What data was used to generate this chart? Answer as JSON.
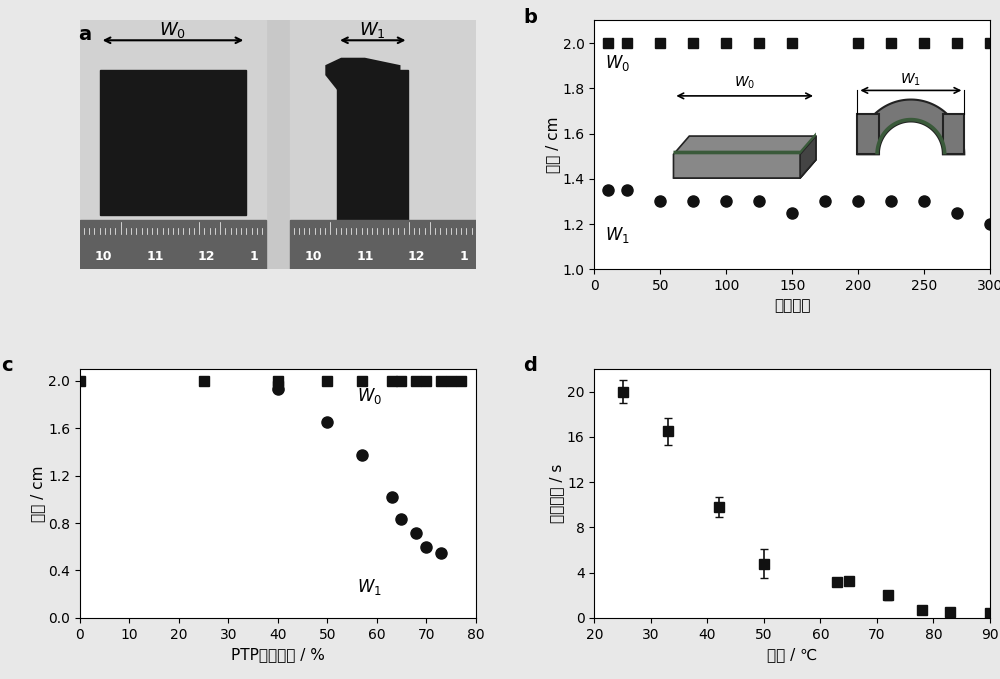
{
  "panel_b": {
    "W0_x": [
      10,
      25,
      50,
      75,
      100,
      125,
      150,
      200,
      225,
      250,
      275,
      300
    ],
    "W0_y": [
      2.0,
      2.0,
      2.0,
      2.0,
      2.0,
      2.0,
      2.0,
      2.0,
      2.0,
      2.0,
      2.0,
      2.0
    ],
    "W1_x": [
      10,
      25,
      50,
      75,
      100,
      125,
      150,
      175,
      200,
      225,
      250,
      275,
      300
    ],
    "W1_y": [
      1.35,
      1.35,
      1.3,
      1.3,
      1.3,
      1.3,
      1.25,
      1.3,
      1.3,
      1.3,
      1.3,
      1.25,
      1.2
    ],
    "xlabel": "循环次数",
    "ylabel": "宽度 / cm",
    "xlim": [
      0,
      300
    ],
    "ylim": [
      1.0,
      2.1
    ],
    "yticks": [
      1.0,
      1.2,
      1.4,
      1.6,
      1.8,
      2.0
    ],
    "xticks": [
      0,
      50,
      100,
      150,
      200,
      250,
      300
    ]
  },
  "panel_c": {
    "W0_x": [
      0,
      25,
      40,
      40,
      50,
      57,
      63,
      65,
      68,
      70,
      73,
      75,
      77
    ],
    "W0_y": [
      2.0,
      2.0,
      2.0,
      1.96,
      2.0,
      2.0,
      2.0,
      2.0,
      2.0,
      2.0,
      2.0,
      2.0,
      2.0
    ],
    "W1_x": [
      40,
      50,
      57,
      63,
      65,
      68,
      70,
      73
    ],
    "W1_y": [
      1.93,
      1.65,
      1.37,
      1.02,
      0.83,
      0.72,
      0.6,
      0.55
    ],
    "xlabel": "PTP质量分数 / %",
    "ylabel": "宽度 / cm",
    "xlim": [
      0,
      80
    ],
    "ylim": [
      0.0,
      2.1
    ],
    "yticks": [
      0.0,
      0.4,
      0.8,
      1.2,
      1.6,
      2.0
    ],
    "xticks": [
      0,
      10,
      20,
      30,
      40,
      50,
      60,
      70,
      80
    ]
  },
  "panel_d": {
    "x": [
      25,
      33,
      42,
      50,
      63,
      65,
      72,
      78,
      83,
      90
    ],
    "y": [
      20.0,
      16.5,
      9.8,
      4.8,
      3.2,
      3.3,
      2.0,
      0.7,
      0.5,
      0.4
    ],
    "yerr": [
      1.0,
      1.2,
      0.9,
      1.3,
      0.3,
      0.3,
      0.4,
      0.15,
      0.12,
      0.1
    ],
    "xlabel": "温度 / ℃",
    "ylabel": "响应时间 / s",
    "xlim": [
      20,
      90
    ],
    "ylim": [
      0,
      22
    ],
    "yticks": [
      0,
      4,
      8,
      12,
      16,
      20
    ],
    "xticks": [
      20,
      30,
      40,
      50,
      60,
      70,
      80,
      90
    ]
  },
  "bg_color": "#e8e8e8",
  "plot_bg": "#ffffff",
  "marker_color": "#111111",
  "ms_sq": 7,
  "ms_ci": 8,
  "fs_label": 11,
  "fs_tick": 10,
  "fs_panel": 14,
  "fs_annot": 12
}
